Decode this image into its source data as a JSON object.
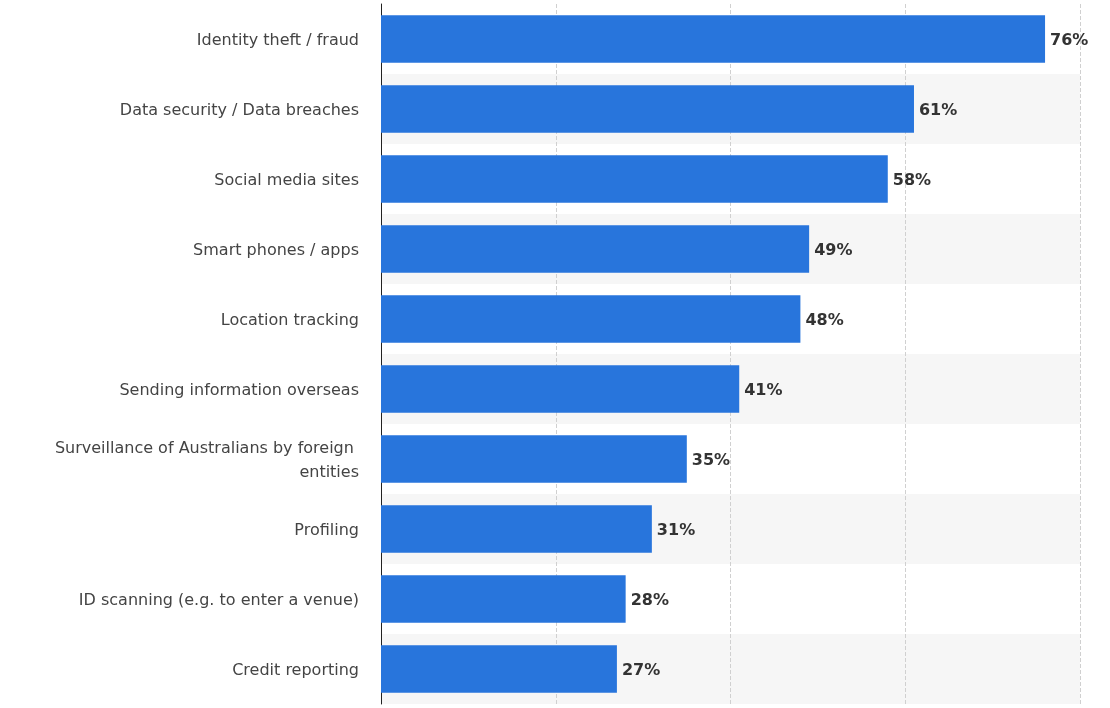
{
  "chart_data": {
    "type": "bar",
    "orientation": "horizontal",
    "categories": [
      "Identity theft / fraud",
      "Data security / Data breaches",
      "Social media sites",
      "Smart phones / apps",
      "Location tracking",
      "Sending information overseas",
      "Surveillance of Australians by foreign entities",
      "Profiling",
      "ID scanning (e.g. to enter a venue)",
      "Credit reporting"
    ],
    "values": [
      76,
      61,
      58,
      49,
      48,
      41,
      35,
      31,
      28,
      27
    ],
    "value_labels": [
      "76%",
      "61%",
      "58%",
      "49%",
      "48%",
      "41%",
      "35%",
      "31%",
      "28%",
      "27%"
    ],
    "color": "#2875dc",
    "grid": "x",
    "tick_labels": "y"
  }
}
